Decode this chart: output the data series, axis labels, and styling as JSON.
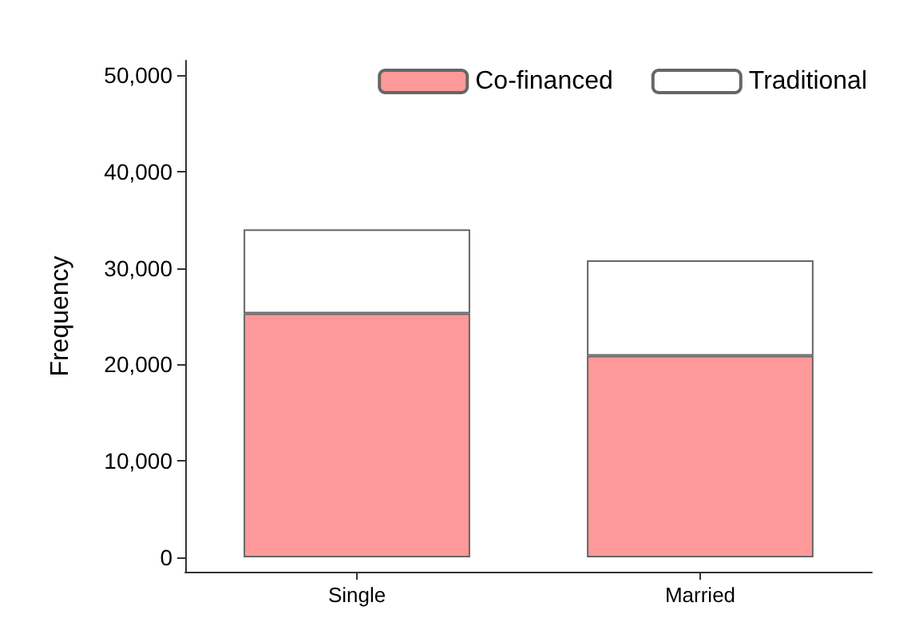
{
  "chart_data": {
    "type": "bar",
    "ylabel": "Frequency",
    "categories": [
      "Single",
      "Married"
    ],
    "stacked": true,
    "series": [
      {
        "name": "Co-financed",
        "color": "#ff9999",
        "values": [
          25300,
          20900
        ]
      },
      {
        "name": "Traditional",
        "color": "#ffffff",
        "values": [
          8700,
          9900
        ]
      }
    ],
    "ylim": [
      -1500,
      51500
    ],
    "yticks": [
      0,
      {
        "value": 10000,
        "label": "10,000"
      },
      {
        "value": 20000,
        "label": "20,000"
      },
      {
        "value": 30000,
        "label": "30,000"
      },
      {
        "value": 40000,
        "label": "40,000"
      },
      {
        "value": 50000,
        "label": "50,000"
      }
    ],
    "grid": false,
    "legend": "top right"
  }
}
